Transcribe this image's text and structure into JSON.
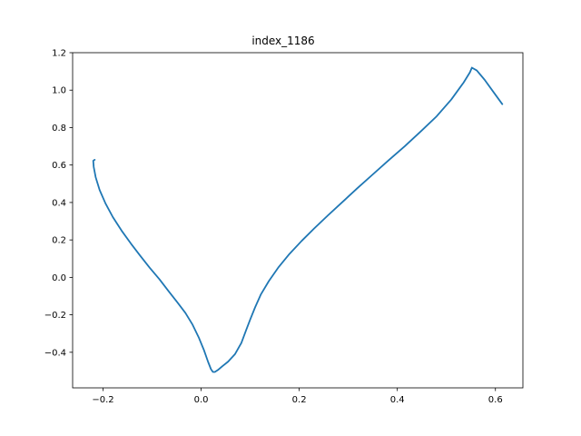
{
  "chart_data": {
    "type": "line",
    "title": "index_1186",
    "xlabel": "",
    "ylabel": "",
    "xlim": [
      -0.262,
      0.656
    ],
    "ylim": [
      -0.59,
      1.2
    ],
    "grid": false,
    "xticks": [
      -0.2,
      0.0,
      0.2,
      0.4,
      0.6
    ],
    "xtick_labels": [
      "−0.2",
      "0.0",
      "0.2",
      "0.4",
      "0.6"
    ],
    "yticks": [
      -0.4,
      -0.2,
      0.0,
      0.2,
      0.4,
      0.6,
      0.8,
      1.0,
      1.2
    ],
    "ytick_labels": [
      "−0.4",
      "−0.2",
      "0.0",
      "0.2",
      "0.4",
      "0.6",
      "0.8",
      "1.0",
      "1.2"
    ],
    "series": [
      {
        "color": "#1f77b4",
        "x": [
          -0.217,
          -0.22,
          -0.219,
          -0.215,
          -0.207,
          -0.195,
          -0.18,
          -0.162,
          -0.143,
          -0.124,
          -0.105,
          -0.085,
          -0.066,
          -0.048,
          -0.032,
          -0.018,
          -0.005,
          0.006,
          0.014,
          0.02,
          0.024,
          0.028,
          0.034,
          0.043,
          0.055,
          0.069,
          0.082,
          0.092,
          0.1,
          0.11,
          0.122,
          0.138,
          0.158,
          0.18,
          0.205,
          0.23,
          0.258,
          0.287,
          0.318,
          0.35,
          0.382,
          0.415,
          0.448,
          0.48,
          0.51,
          0.535,
          0.548,
          0.552,
          0.562,
          0.578,
          0.596,
          0.614
        ],
        "y": [
          0.628,
          0.623,
          0.59,
          0.535,
          0.467,
          0.395,
          0.322,
          0.249,
          0.18,
          0.115,
          0.052,
          -0.01,
          -0.075,
          -0.135,
          -0.19,
          -0.25,
          -0.32,
          -0.39,
          -0.45,
          -0.49,
          -0.505,
          -0.505,
          -0.495,
          -0.475,
          -0.45,
          -0.41,
          -0.35,
          -0.28,
          -0.225,
          -0.16,
          -0.09,
          -0.02,
          0.055,
          0.125,
          0.195,
          0.26,
          0.33,
          0.4,
          0.475,
          0.55,
          0.625,
          0.7,
          0.78,
          0.86,
          0.95,
          1.04,
          1.095,
          1.12,
          1.105,
          1.055,
          0.99,
          0.925
        ]
      }
    ]
  }
}
